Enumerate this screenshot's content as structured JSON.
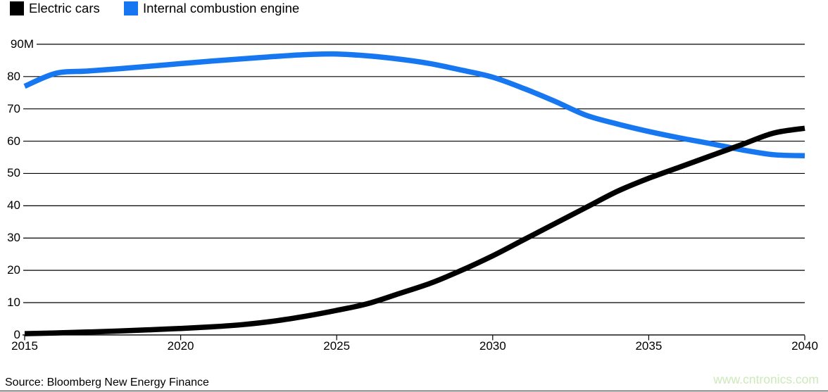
{
  "legend": {
    "items": [
      {
        "label": "Electric cars",
        "color": "#000000"
      },
      {
        "label": "Internal combustion engine",
        "color": "#1677f0"
      }
    ]
  },
  "chart_data": {
    "type": "line",
    "title": "",
    "xlabel": "",
    "ylabel": "",
    "x": [
      2015,
      2016,
      2017,
      2018,
      2019,
      2020,
      2021,
      2022,
      2023,
      2024,
      2025,
      2026,
      2027,
      2028,
      2029,
      2030,
      2031,
      2032,
      2033,
      2034,
      2035,
      2036,
      2037,
      2038,
      2039,
      2040
    ],
    "series": [
      {
        "name": "Electric cars",
        "color": "#000000",
        "values": [
          0.4,
          0.6,
          0.9,
          1.2,
          1.6,
          2.0,
          2.5,
          3.2,
          4.3,
          5.8,
          7.6,
          9.7,
          12.8,
          16.0,
          20.0,
          24.5,
          29.5,
          34.5,
          39.5,
          44.5,
          48.5,
          52.0,
          55.5,
          59.0,
          62.5,
          64.0
        ]
      },
      {
        "name": "Internal combustion engine",
        "color": "#1677f0",
        "values": [
          77,
          81,
          81.7,
          82.4,
          83.2,
          84,
          84.8,
          85.5,
          86.2,
          86.8,
          87,
          86.4,
          85.4,
          84,
          82,
          79.8,
          76.3,
          72.3,
          68,
          65.3,
          63,
          61,
          59.2,
          57.3,
          55.8,
          55.5
        ]
      }
    ],
    "xlim": [
      2015,
      2040
    ],
    "ylim": [
      0,
      90
    ],
    "grid": true,
    "legend_position": "top-left",
    "yticks": {
      "values": [
        0,
        10,
        20,
        30,
        40,
        50,
        60,
        70,
        80,
        90
      ],
      "labels": [
        "0",
        "10",
        "20",
        "30",
        "40",
        "50",
        "60",
        "70",
        "80",
        "90M"
      ]
    },
    "xticks": {
      "values": [
        2015,
        2020,
        2025,
        2030,
        2035,
        2040
      ],
      "labels": [
        "2015",
        "2020",
        "2025",
        "2030",
        "2035",
        "2040"
      ]
    }
  },
  "footer": {
    "source": "Source: Bloomberg New Energy Finance",
    "watermark": "www.cntronics.com",
    "watermark_color": "#cde9bb"
  }
}
